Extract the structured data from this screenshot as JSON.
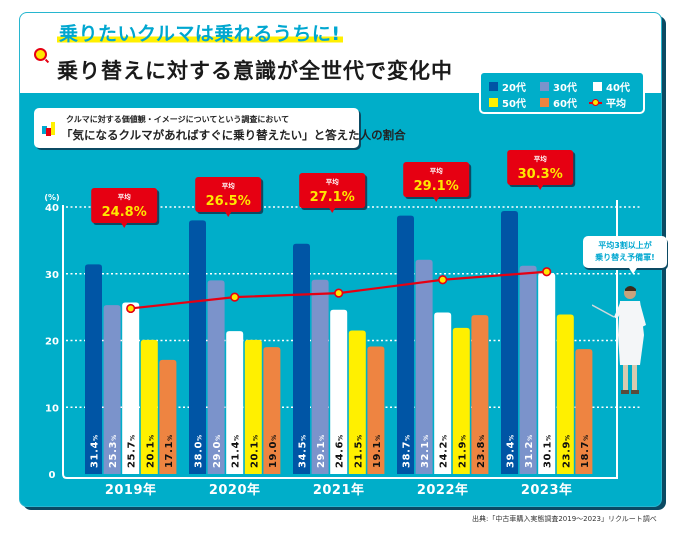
{
  "header": {
    "catchphrase": "乗りたいクルマは乗れるうちに!",
    "headline": "乗り替えに対する意識が全世代で変化中"
  },
  "subtitle": {
    "small": "クルマに対する価値観・イメージについてという調査において",
    "main": "「気になるクルマがあればすぐに乗り替えたい」と答えた人の割合"
  },
  "legend": {
    "items": [
      {
        "label": "20代",
        "color": "#0055a5"
      },
      {
        "label": "30代",
        "color": "#7b93cb"
      },
      {
        "label": "40代",
        "color": "#ffffff"
      },
      {
        "label": "50代",
        "color": "#fff000"
      },
      {
        "label": "60代",
        "color": "#ee8441"
      },
      {
        "label": "平均",
        "color": "#e60012"
      }
    ]
  },
  "callout": {
    "line1": "平均3割以上が",
    "line2": "乗り替え予備軍!"
  },
  "source": "出典:「中古車購入実態調査2019～2023」リクルート調べ",
  "chart_data": {
    "type": "bar",
    "title": "「気になるクルマがあればすぐに乗り替えたい」と答えた人の割合",
    "xlabel": "",
    "ylabel": "(%)",
    "ylim": [
      0,
      40
    ],
    "yticks": [
      0,
      10,
      20,
      30,
      40
    ],
    "grid": true,
    "legend_position": "top-right",
    "categories": [
      "2019年",
      "2020年",
      "2021年",
      "2022年",
      "2023年"
    ],
    "series": [
      {
        "name": "20代",
        "color": "#0055a5",
        "label_color": "#ffffff",
        "values": [
          31.4,
          38.0,
          34.5,
          38.7,
          39.4
        ]
      },
      {
        "name": "30代",
        "color": "#7b93cb",
        "label_color": "#ffffff",
        "values": [
          25.3,
          29.0,
          29.1,
          32.1,
          31.2
        ]
      },
      {
        "name": "40代",
        "color": "#ffffff",
        "label_color": "#111111",
        "values": [
          25.7,
          21.4,
          24.6,
          24.2,
          30.1
        ]
      },
      {
        "name": "50代",
        "color": "#fff000",
        "label_color": "#111111",
        "values": [
          20.1,
          20.1,
          21.5,
          21.9,
          23.9
        ]
      },
      {
        "name": "60代",
        "color": "#ee8441",
        "label_color": "#111111",
        "values": [
          17.1,
          19.0,
          19.1,
          23.8,
          18.7
        ]
      }
    ],
    "average": {
      "name": "平均",
      "label": "平均",
      "color": "#e60012",
      "values": [
        24.8,
        26.5,
        27.1,
        29.1,
        30.3
      ]
    }
  }
}
